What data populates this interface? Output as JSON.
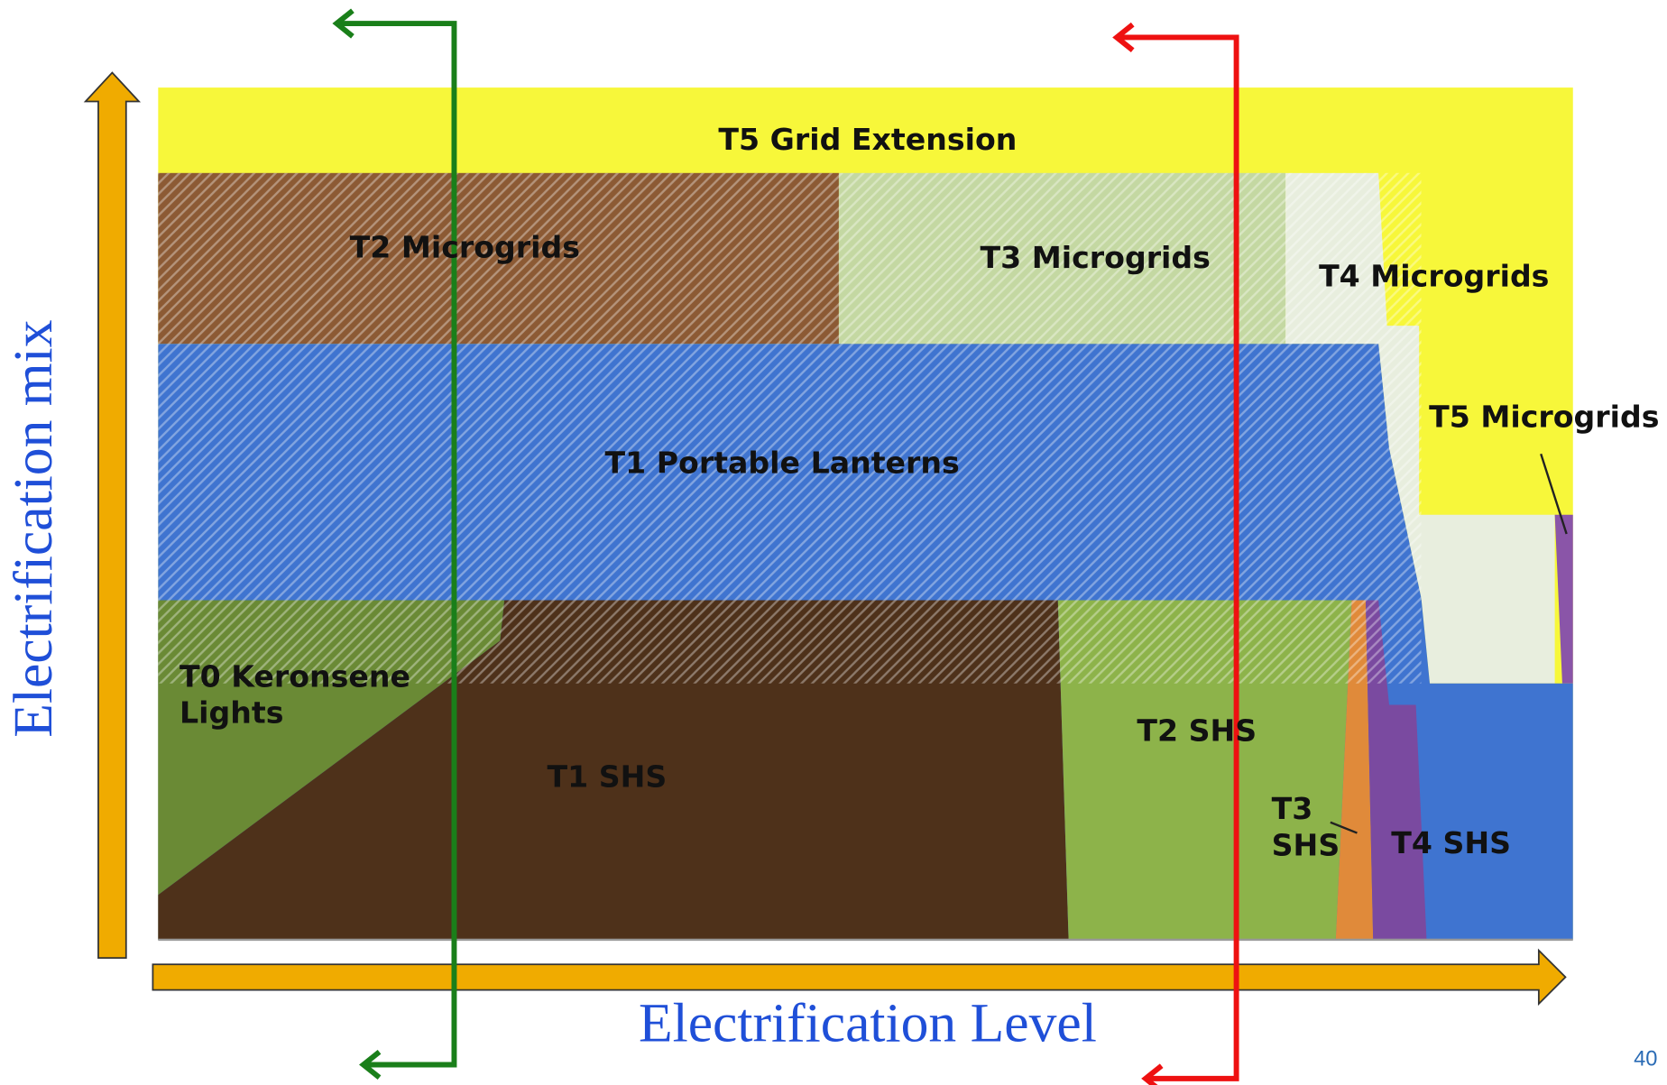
{
  "regions": [
    {
      "lines": [
        "T5 Grid Extension"
      ]
    },
    {
      "lines": [
        "T2 Microgrids"
      ]
    },
    {
      "lines": [
        "T3 Microgrids"
      ]
    },
    {
      "lines": [
        "T4 Microgrids"
      ]
    },
    {
      "lines": [
        "T5 Microgrids"
      ]
    },
    {
      "lines": [
        "T1 Portable Lanterns"
      ]
    },
    {
      "lines": [
        "T0 Keronsene",
        "Lights"
      ]
    },
    {
      "lines": [
        "T1 SHS"
      ]
    },
    {
      "lines": [
        "T2 SHS"
      ]
    },
    {
      "lines": [
        "T3",
        "SHS"
      ]
    },
    {
      "lines": [
        "T4 SHS"
      ]
    }
  ],
  "axes": {
    "x_label": "Electrification Level",
    "y_label": "Electrification mix"
  },
  "page_number": "40"
}
